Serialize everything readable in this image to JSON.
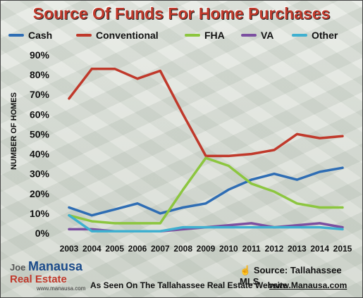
{
  "chart_data": {
    "type": "line",
    "title": "Source Of Funds For Home Purchases",
    "ylabel": "NUMBER OF HOMES",
    "xlabel": "",
    "ylim": [
      0,
      90
    ],
    "yticks": [
      "0%",
      "10%",
      "20%",
      "30%",
      "40%",
      "50%",
      "60%",
      "70%",
      "80%",
      "90%"
    ],
    "categories": [
      "2003",
      "2004",
      "2005",
      "2006",
      "2007",
      "2008",
      "2009",
      "2010",
      "2011",
      "2012",
      "2013",
      "2014",
      "2015"
    ],
    "legend_position": "top",
    "series": [
      {
        "name": "Cash",
        "color": "#2e6db4",
        "values": [
          13,
          9,
          12,
          15,
          10,
          13,
          15,
          22,
          27,
          30,
          27,
          31,
          33
        ]
      },
      {
        "name": "Conventional",
        "color": "#c0392b",
        "values": [
          68,
          83,
          83,
          78,
          82,
          60,
          39,
          39,
          40,
          42,
          50,
          48,
          49
        ]
      },
      {
        "name": "FHA",
        "color": "#8cc63f",
        "values": [
          9,
          6,
          5,
          5,
          5,
          22,
          38,
          34,
          25,
          21,
          15,
          13,
          13
        ]
      },
      {
        "name": "VA",
        "color": "#7b4fa0",
        "values": [
          2,
          2,
          1,
          1,
          1,
          2,
          3,
          4,
          5,
          3,
          4,
          5,
          3
        ]
      },
      {
        "name": "Other",
        "color": "#3fb0d0",
        "values": [
          9,
          1,
          1,
          1,
          1,
          3,
          3,
          3,
          3,
          3,
          3,
          3,
          2
        ]
      }
    ]
  },
  "source": "Source: Tallahassee MLS",
  "tagline": "As Seen On The Tallahassee Real Estate Website",
  "website": "www.Manausa.com",
  "logo": {
    "joe": "Joe",
    "manausa": "Manausa",
    "realestate": "Real Estate",
    "web": "www.manausa.com"
  }
}
